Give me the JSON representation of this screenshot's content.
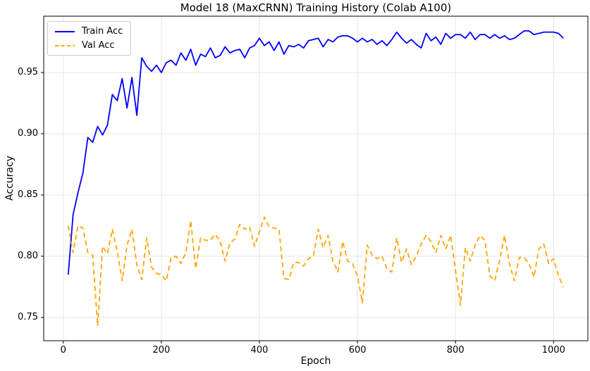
{
  "chart_data": {
    "type": "line",
    "title": "Model 18 (MaxCRNN) Training History (Colab A100)",
    "xlabel": "Epoch",
    "ylabel": "Accuracy",
    "xlim": [
      -40,
      1070
    ],
    "ylim": [
      0.731,
      0.996
    ],
    "grid": true,
    "grid_color": "#e5e5e5",
    "spine_color": "#000000",
    "legend_position": "upper-left",
    "x_ticks": [
      {
        "v": 0,
        "label": "0"
      },
      {
        "v": 200,
        "label": "200"
      },
      {
        "v": 400,
        "label": "400"
      },
      {
        "v": 600,
        "label": "600"
      },
      {
        "v": 800,
        "label": "800"
      },
      {
        "v": 1000,
        "label": "1000"
      }
    ],
    "y_ticks": [
      {
        "v": 0.75,
        "label": "0.75"
      },
      {
        "v": 0.8,
        "label": "0.80"
      },
      {
        "v": 0.85,
        "label": "0.85"
      },
      {
        "v": 0.9,
        "label": "0.90"
      },
      {
        "v": 0.95,
        "label": "0.95"
      }
    ],
    "epochs": [
      10,
      20,
      30,
      40,
      50,
      60,
      70,
      80,
      90,
      100,
      110,
      120,
      130,
      140,
      150,
      160,
      170,
      180,
      190,
      200,
      210,
      220,
      230,
      240,
      250,
      260,
      270,
      280,
      290,
      300,
      310,
      320,
      330,
      340,
      350,
      360,
      370,
      380,
      390,
      400,
      410,
      420,
      430,
      440,
      450,
      460,
      470,
      480,
      490,
      500,
      510,
      520,
      530,
      540,
      550,
      560,
      570,
      580,
      590,
      600,
      610,
      620,
      630,
      640,
      650,
      660,
      670,
      680,
      690,
      700,
      710,
      720,
      730,
      740,
      750,
      760,
      770,
      780,
      790,
      800,
      810,
      820,
      830,
      840,
      850,
      860,
      870,
      880,
      890,
      900,
      910,
      920,
      930,
      940,
      950,
      960,
      970,
      980,
      990,
      1000,
      1010,
      1020
    ],
    "series": [
      {
        "name": "Train Acc",
        "color": "#0000ff",
        "style": "solid",
        "values": [
          0.785,
          0.834,
          0.852,
          0.868,
          0.897,
          0.893,
          0.906,
          0.899,
          0.907,
          0.932,
          0.927,
          0.945,
          0.921,
          0.946,
          0.915,
          0.962,
          0.955,
          0.951,
          0.956,
          0.95,
          0.958,
          0.96,
          0.956,
          0.966,
          0.96,
          0.969,
          0.956,
          0.965,
          0.963,
          0.97,
          0.962,
          0.964,
          0.971,
          0.966,
          0.968,
          0.969,
          0.962,
          0.97,
          0.972,
          0.978,
          0.972,
          0.975,
          0.968,
          0.975,
          0.965,
          0.972,
          0.971,
          0.973,
          0.97,
          0.976,
          0.977,
          0.978,
          0.971,
          0.977,
          0.975,
          0.979,
          0.98,
          0.98,
          0.978,
          0.975,
          0.978,
          0.975,
          0.977,
          0.973,
          0.976,
          0.972,
          0.977,
          0.983,
          0.978,
          0.974,
          0.977,
          0.973,
          0.97,
          0.982,
          0.976,
          0.979,
          0.973,
          0.982,
          0.978,
          0.981,
          0.981,
          0.978,
          0.983,
          0.977,
          0.981,
          0.981,
          0.978,
          0.981,
          0.978,
          0.98,
          0.977,
          0.978,
          0.981,
          0.984,
          0.984,
          0.981,
          0.982,
          0.983,
          0.983,
          0.983,
          0.982,
          0.978
        ]
      },
      {
        "name": "Val Acc",
        "color": "#ffa500",
        "style": "dashed",
        "values": [
          0.825,
          0.803,
          0.825,
          0.823,
          0.803,
          0.801,
          0.743,
          0.808,
          0.802,
          0.822,
          0.804,
          0.78,
          0.809,
          0.822,
          0.793,
          0.781,
          0.815,
          0.791,
          0.786,
          0.785,
          0.78,
          0.799,
          0.8,
          0.794,
          0.803,
          0.829,
          0.79,
          0.815,
          0.813,
          0.813,
          0.818,
          0.812,
          0.796,
          0.811,
          0.814,
          0.826,
          0.822,
          0.824,
          0.808,
          0.82,
          0.832,
          0.824,
          0.823,
          0.822,
          0.782,
          0.781,
          0.795,
          0.795,
          0.792,
          0.798,
          0.8,
          0.822,
          0.807,
          0.817,
          0.796,
          0.787,
          0.812,
          0.796,
          0.794,
          0.784,
          0.762,
          0.809,
          0.801,
          0.798,
          0.8,
          0.79,
          0.787,
          0.815,
          0.795,
          0.806,
          0.793,
          0.8,
          0.81,
          0.817,
          0.812,
          0.803,
          0.817,
          0.806,
          0.817,
          0.788,
          0.76,
          0.807,
          0.796,
          0.809,
          0.817,
          0.813,
          0.784,
          0.78,
          0.797,
          0.817,
          0.794,
          0.78,
          0.799,
          0.799,
          0.794,
          0.783,
          0.806,
          0.81,
          0.794,
          0.798,
          0.784,
          0.775
        ]
      }
    ]
  }
}
